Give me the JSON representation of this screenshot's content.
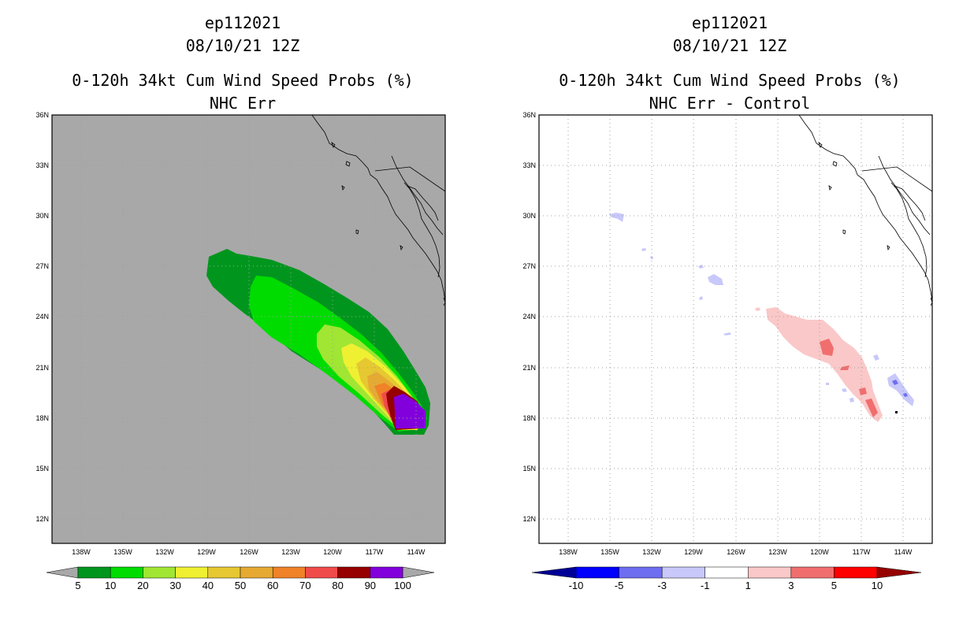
{
  "left_panel": {
    "storm_id": "ep112021",
    "datetime": "08/10/21 12Z",
    "title": "0-120h 34kt Cum Wind Speed Probs (%)",
    "subtitle": "NHC Err",
    "lat_labels": [
      "36N",
      "33N",
      "30N",
      "27N",
      "24N",
      "21N",
      "18N",
      "15N",
      "12N"
    ],
    "lon_labels": [
      "138W",
      "135W",
      "132W",
      "129W",
      "126W",
      "123W",
      "120W",
      "117W",
      "114W"
    ],
    "colorbar": {
      "labels": [
        "5",
        "10",
        "20",
        "30",
        "40",
        "50",
        "60",
        "70",
        "80",
        "90",
        "100"
      ],
      "colors": [
        "#00961e",
        "#00dc00",
        "#a0e632",
        "#f0f032",
        "#e6c832",
        "#e6aa32",
        "#f08228",
        "#f04b4b",
        "#960000",
        "#8200dc"
      ],
      "end_color": "#a8a8a8"
    }
  },
  "right_panel": {
    "storm_id": "ep112021",
    "datetime": "08/10/21 12Z",
    "title": "0-120h 34kt Cum Wind Speed Probs (%)",
    "subtitle": "NHC Err - Control",
    "lat_labels": [
      "36N",
      "33N",
      "30N",
      "27N",
      "24N",
      "21N",
      "18N",
      "15N",
      "12N"
    ],
    "lon_labels": [
      "138W",
      "135W",
      "132W",
      "129W",
      "126W",
      "123W",
      "120W",
      "117W",
      "114W"
    ],
    "colorbar": {
      "labels": [
        "-10",
        "-5",
        "-3",
        "-1",
        "1",
        "3",
        "5",
        "10"
      ],
      "colors": [
        "#0000ff",
        "#6e6ef0",
        "#c8c8fa",
        "#ffffff",
        "#fac8c8",
        "#f06e6e",
        "#ff0000"
      ],
      "low_end_color": "#000096",
      "high_end_color": "#960000"
    }
  },
  "colors": {
    "ocean": "#a8a8a8",
    "coast": "#000000",
    "grid": "#a0a0a0"
  }
}
